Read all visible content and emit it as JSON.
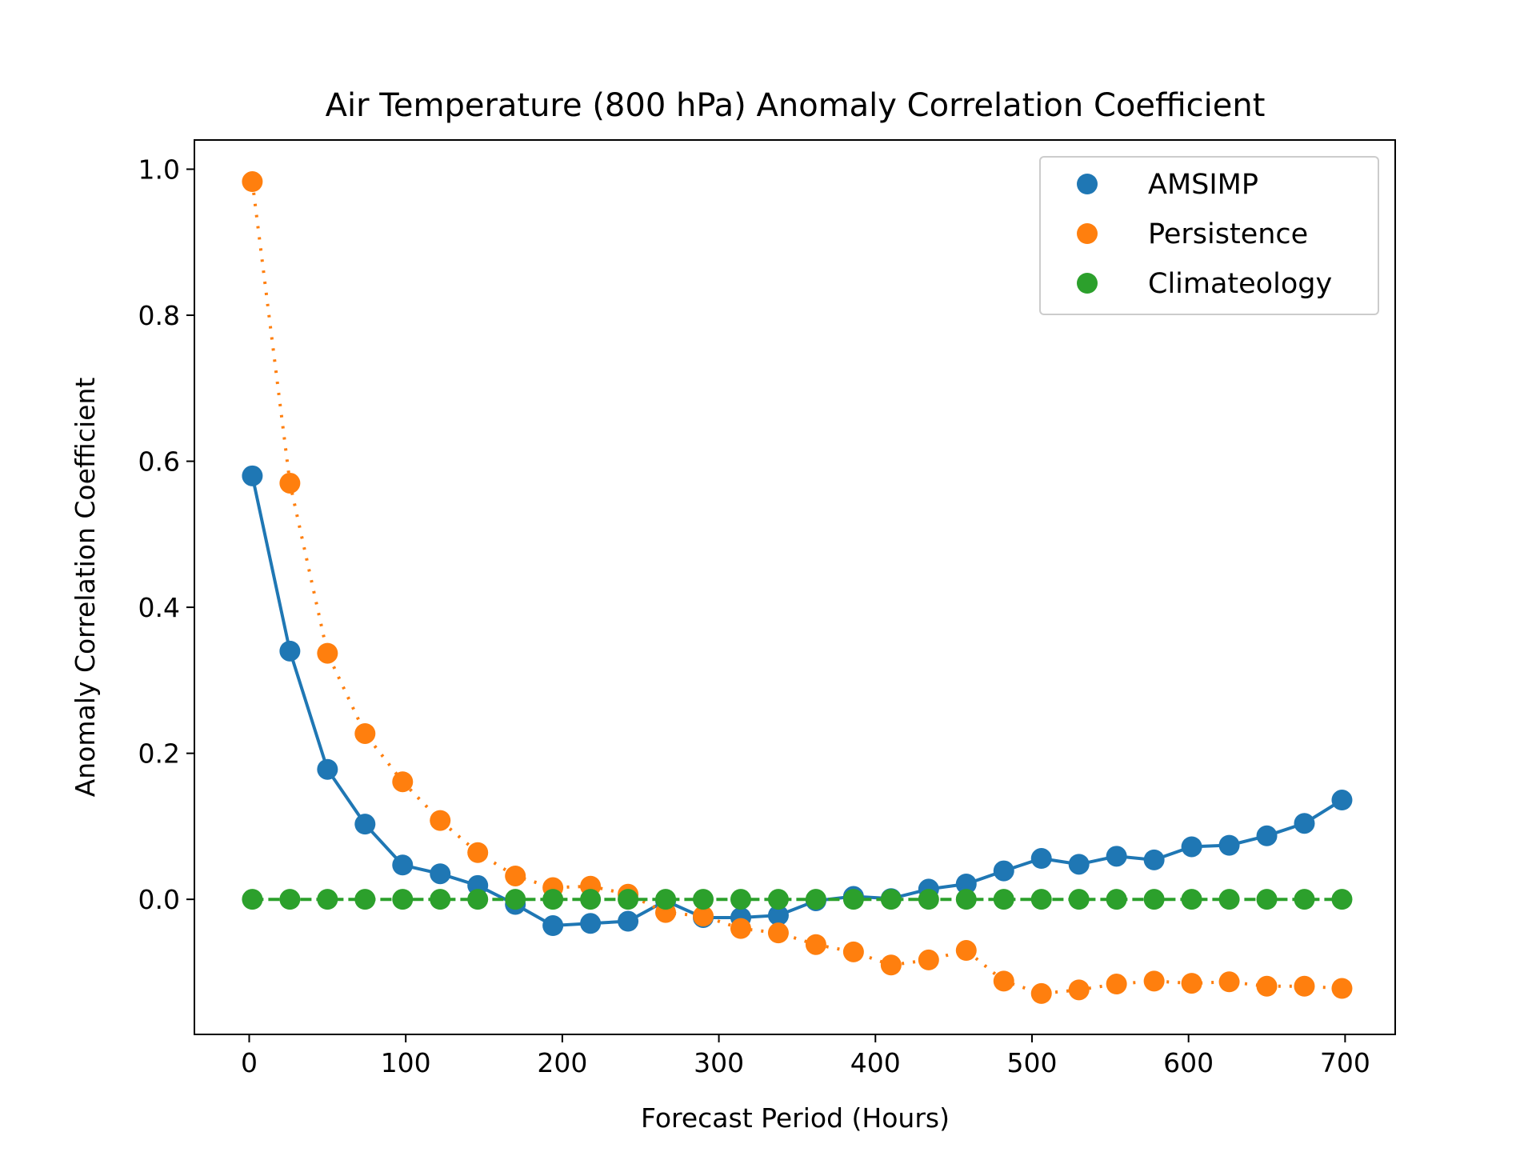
{
  "chart_data": {
    "type": "line",
    "title": "Air Temperature (800 hPa) Anomaly Correlation Coefficient",
    "xlabel": "Forecast Period (Hours)",
    "ylabel": "Anomaly Correlation Coefficient",
    "xlim": [
      -35,
      732
    ],
    "ylim": [
      -0.185,
      1.04
    ],
    "xticks": [
      0,
      100,
      200,
      300,
      400,
      500,
      600,
      700
    ],
    "xtick_labels": [
      "0",
      "100",
      "200",
      "300",
      "400",
      "500",
      "600",
      "700"
    ],
    "yticks": [
      0.0,
      0.2,
      0.4,
      0.6,
      0.8,
      1.0
    ],
    "ytick_labels": [
      "0.0",
      "0.2",
      "0.4",
      "0.6",
      "0.8",
      "1.0"
    ],
    "grid": false,
    "legend_position": "top-right",
    "x": [
      2,
      26,
      50,
      74,
      98,
      122,
      146,
      170,
      194,
      218,
      242,
      266,
      290,
      314,
      338,
      362,
      386,
      410,
      434,
      458,
      482,
      506,
      530,
      554,
      578,
      602,
      626,
      650,
      674,
      698
    ],
    "series": [
      {
        "name": "AMSIMP",
        "color": "#1f77b4",
        "line_style": "solid",
        "values": [
          0.58,
          0.34,
          0.178,
          0.103,
          0.047,
          0.035,
          0.019,
          -0.007,
          -0.036,
          -0.033,
          -0.03,
          -0.002,
          -0.025,
          -0.025,
          -0.022,
          -0.002,
          0.004,
          0.001,
          0.014,
          0.021,
          0.039,
          0.056,
          0.048,
          0.059,
          0.054,
          0.072,
          0.074,
          0.087,
          0.104,
          0.136
        ]
      },
      {
        "name": "Persistence",
        "color": "#ff7f0e",
        "line_style": "dotted",
        "values": [
          0.983,
          0.57,
          0.337,
          0.227,
          0.161,
          0.108,
          0.064,
          0.032,
          0.016,
          0.018,
          0.007,
          -0.018,
          -0.023,
          -0.04,
          -0.046,
          -0.062,
          -0.072,
          -0.09,
          -0.083,
          -0.07,
          -0.112,
          -0.129,
          -0.124,
          -0.116,
          -0.112,
          -0.115,
          -0.113,
          -0.119,
          -0.119,
          -0.122
        ]
      },
      {
        "name": "Climateology",
        "color": "#2ca02c",
        "line_style": "dashed",
        "values": [
          0,
          0,
          0,
          0,
          0,
          0,
          0,
          0,
          0,
          0,
          0,
          0,
          0,
          0,
          0,
          0,
          0,
          0,
          0,
          0,
          0,
          0,
          0,
          0,
          0,
          0,
          0,
          0,
          0,
          0
        ]
      }
    ]
  }
}
